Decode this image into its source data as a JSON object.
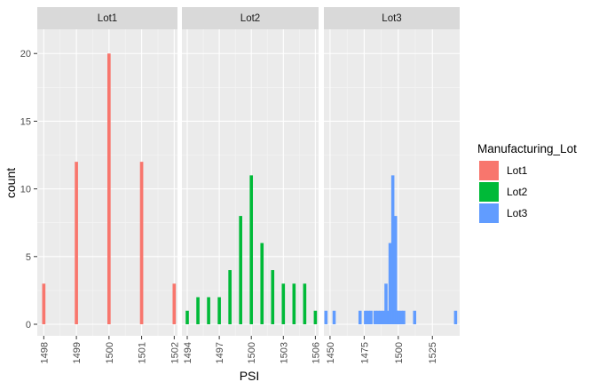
{
  "chart_data": {
    "type": "bar",
    "subtype": "faceted-histogram",
    "xlabel": "PSI",
    "ylabel": "count",
    "ylim": [
      0,
      21
    ],
    "y_ticks": [
      "0",
      "5",
      "10",
      "15",
      "20"
    ],
    "grid": true,
    "legend": {
      "title": "Manufacturing_Lot",
      "placement": "right",
      "entries": [
        {
          "name": "Lot1",
          "color": "#F8766D"
        },
        {
          "name": "Lot2",
          "color": "#00BA38"
        },
        {
          "name": "Lot3",
          "color": "#619CFF"
        }
      ]
    },
    "facets": [
      {
        "strip": "Lot1",
        "color": "#F8766D",
        "xlim": [
          1497.8,
          1502.1
        ],
        "x_ticks": [
          "1498",
          "1499",
          "1500",
          "1501",
          "1502"
        ],
        "bin_width": 0.1,
        "bins": [
          {
            "x": 1498,
            "count": 3
          },
          {
            "x": 1499,
            "count": 12
          },
          {
            "x": 1500,
            "count": 20
          },
          {
            "x": 1501,
            "count": 12
          },
          {
            "x": 1502,
            "count": 3
          }
        ]
      },
      {
        "strip": "Lot2",
        "color": "#00BA38",
        "xlim": [
          1493.5,
          1506.3
        ],
        "x_ticks": [
          "1494",
          "1497",
          "1500",
          "1503",
          "1506"
        ],
        "bin_width": 0.3,
        "bins": [
          {
            "x": 1494,
            "count": 1
          },
          {
            "x": 1495,
            "count": 2
          },
          {
            "x": 1496,
            "count": 2
          },
          {
            "x": 1497,
            "count": 2
          },
          {
            "x": 1498,
            "count": 4
          },
          {
            "x": 1499,
            "count": 8
          },
          {
            "x": 1500,
            "count": 11
          },
          {
            "x": 1501,
            "count": 6
          },
          {
            "x": 1502,
            "count": 4
          },
          {
            "x": 1503,
            "count": 3
          },
          {
            "x": 1504,
            "count": 3
          },
          {
            "x": 1505,
            "count": 3
          },
          {
            "x": 1506,
            "count": 1
          }
        ]
      },
      {
        "strip": "Lot3",
        "color": "#619CFF",
        "xlim": [
          1445.5,
          1545
        ],
        "x_ticks": [
          "1450",
          "1475",
          "1500",
          "1525"
        ],
        "bin_width": 2.3,
        "bins": [
          {
            "x": 1447,
            "count": 1
          },
          {
            "x": 1453,
            "count": 1
          },
          {
            "x": 1472,
            "count": 1
          },
          {
            "x": 1476,
            "count": 1
          },
          {
            "x": 1478,
            "count": 1
          },
          {
            "x": 1480,
            "count": 1
          },
          {
            "x": 1483,
            "count": 1
          },
          {
            "x": 1485,
            "count": 1
          },
          {
            "x": 1487,
            "count": 1
          },
          {
            "x": 1489,
            "count": 1
          },
          {
            "x": 1491,
            "count": 3
          },
          {
            "x": 1493,
            "count": 1
          },
          {
            "x": 1494,
            "count": 6
          },
          {
            "x": 1496,
            "count": 11
          },
          {
            "x": 1497,
            "count": 7
          },
          {
            "x": 1498,
            "count": 8
          },
          {
            "x": 1499,
            "count": 1
          },
          {
            "x": 1500,
            "count": 1
          },
          {
            "x": 1502,
            "count": 1
          },
          {
            "x": 1504,
            "count": 1
          },
          {
            "x": 1512,
            "count": 1
          },
          {
            "x": 1542,
            "count": 1
          }
        ]
      }
    ]
  }
}
